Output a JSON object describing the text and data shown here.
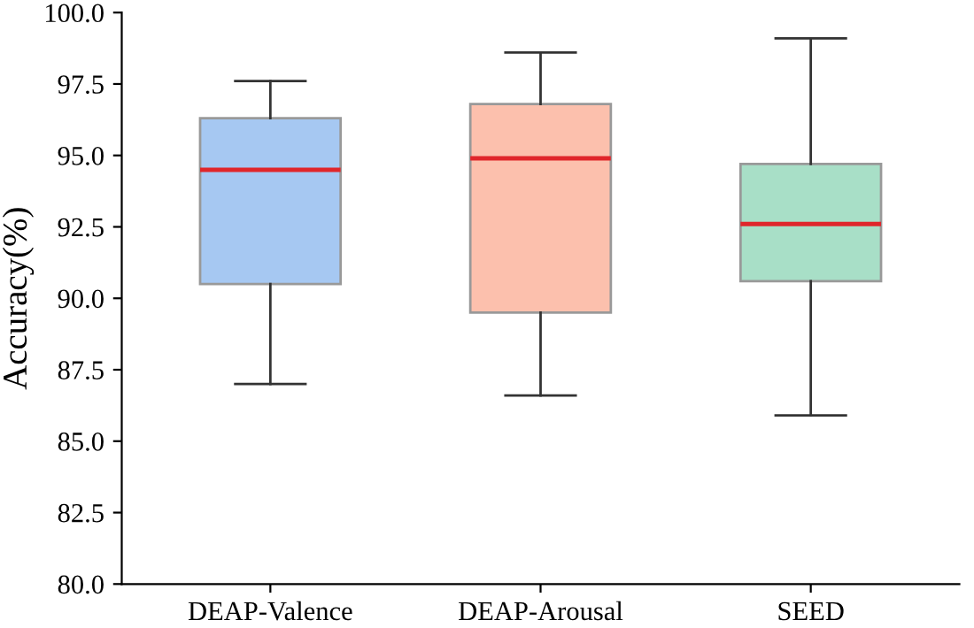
{
  "chart_data": {
    "type": "box",
    "ylabel": "Accuracy(%)",
    "categories": [
      "DEAP-Valence",
      "DEAP-Arousal",
      "SEED"
    ],
    "colors": [
      "#a6c8f2",
      "#fcc0ad",
      "#a8dfc7"
    ],
    "boxes": [
      {
        "low": 87.0,
        "q1": 90.5,
        "median": 94.5,
        "q3": 96.3,
        "high": 97.6
      },
      {
        "low": 86.6,
        "q1": 89.5,
        "median": 94.9,
        "q3": 96.8,
        "high": 98.6
      },
      {
        "low": 85.9,
        "q1": 90.6,
        "median": 92.6,
        "q3": 94.7,
        "high": 99.1
      }
    ],
    "ylim": [
      80,
      100
    ],
    "yticks": [
      {
        "value": 80,
        "label": "80.0"
      },
      82.5,
      {
        "value": 85,
        "label": "85.0"
      },
      87.5,
      {
        "value": 90,
        "label": "90.0"
      },
      92.5,
      {
        "value": 95,
        "label": "95.0"
      },
      97.5,
      {
        "value": 100,
        "label": "100.0"
      }
    ],
    "grid": false
  }
}
